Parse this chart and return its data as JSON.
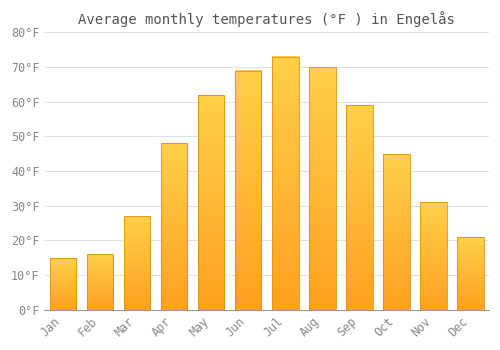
{
  "title": "Average monthly temperatures (°F ) in Engelås",
  "months": [
    "Jan",
    "Feb",
    "Mar",
    "Apr",
    "May",
    "Jun",
    "Jul",
    "Aug",
    "Sep",
    "Oct",
    "Nov",
    "Dec"
  ],
  "temps": [
    15,
    16,
    27,
    48,
    62,
    69,
    73,
    70,
    59,
    45,
    31,
    21
  ],
  "bar_color_top": "#FFD04A",
  "bar_color_bottom": "#FFA020",
  "bar_edge_color": "#E8900A",
  "background_color": "#ffffff",
  "grid_color": "#e0e0e0",
  "text_color": "#888888",
  "title_color": "#555555",
  "ylim": [
    0,
    80
  ],
  "yticks": [
    0,
    10,
    20,
    30,
    40,
    50,
    60,
    70,
    80
  ],
  "ytick_labels": [
    "0°F",
    "10°F",
    "20°F",
    "30°F",
    "40°F",
    "50°F",
    "60°F",
    "70°F",
    "80°F"
  ],
  "title_fontsize": 10,
  "tick_fontsize": 8.5,
  "bar_width": 0.72
}
